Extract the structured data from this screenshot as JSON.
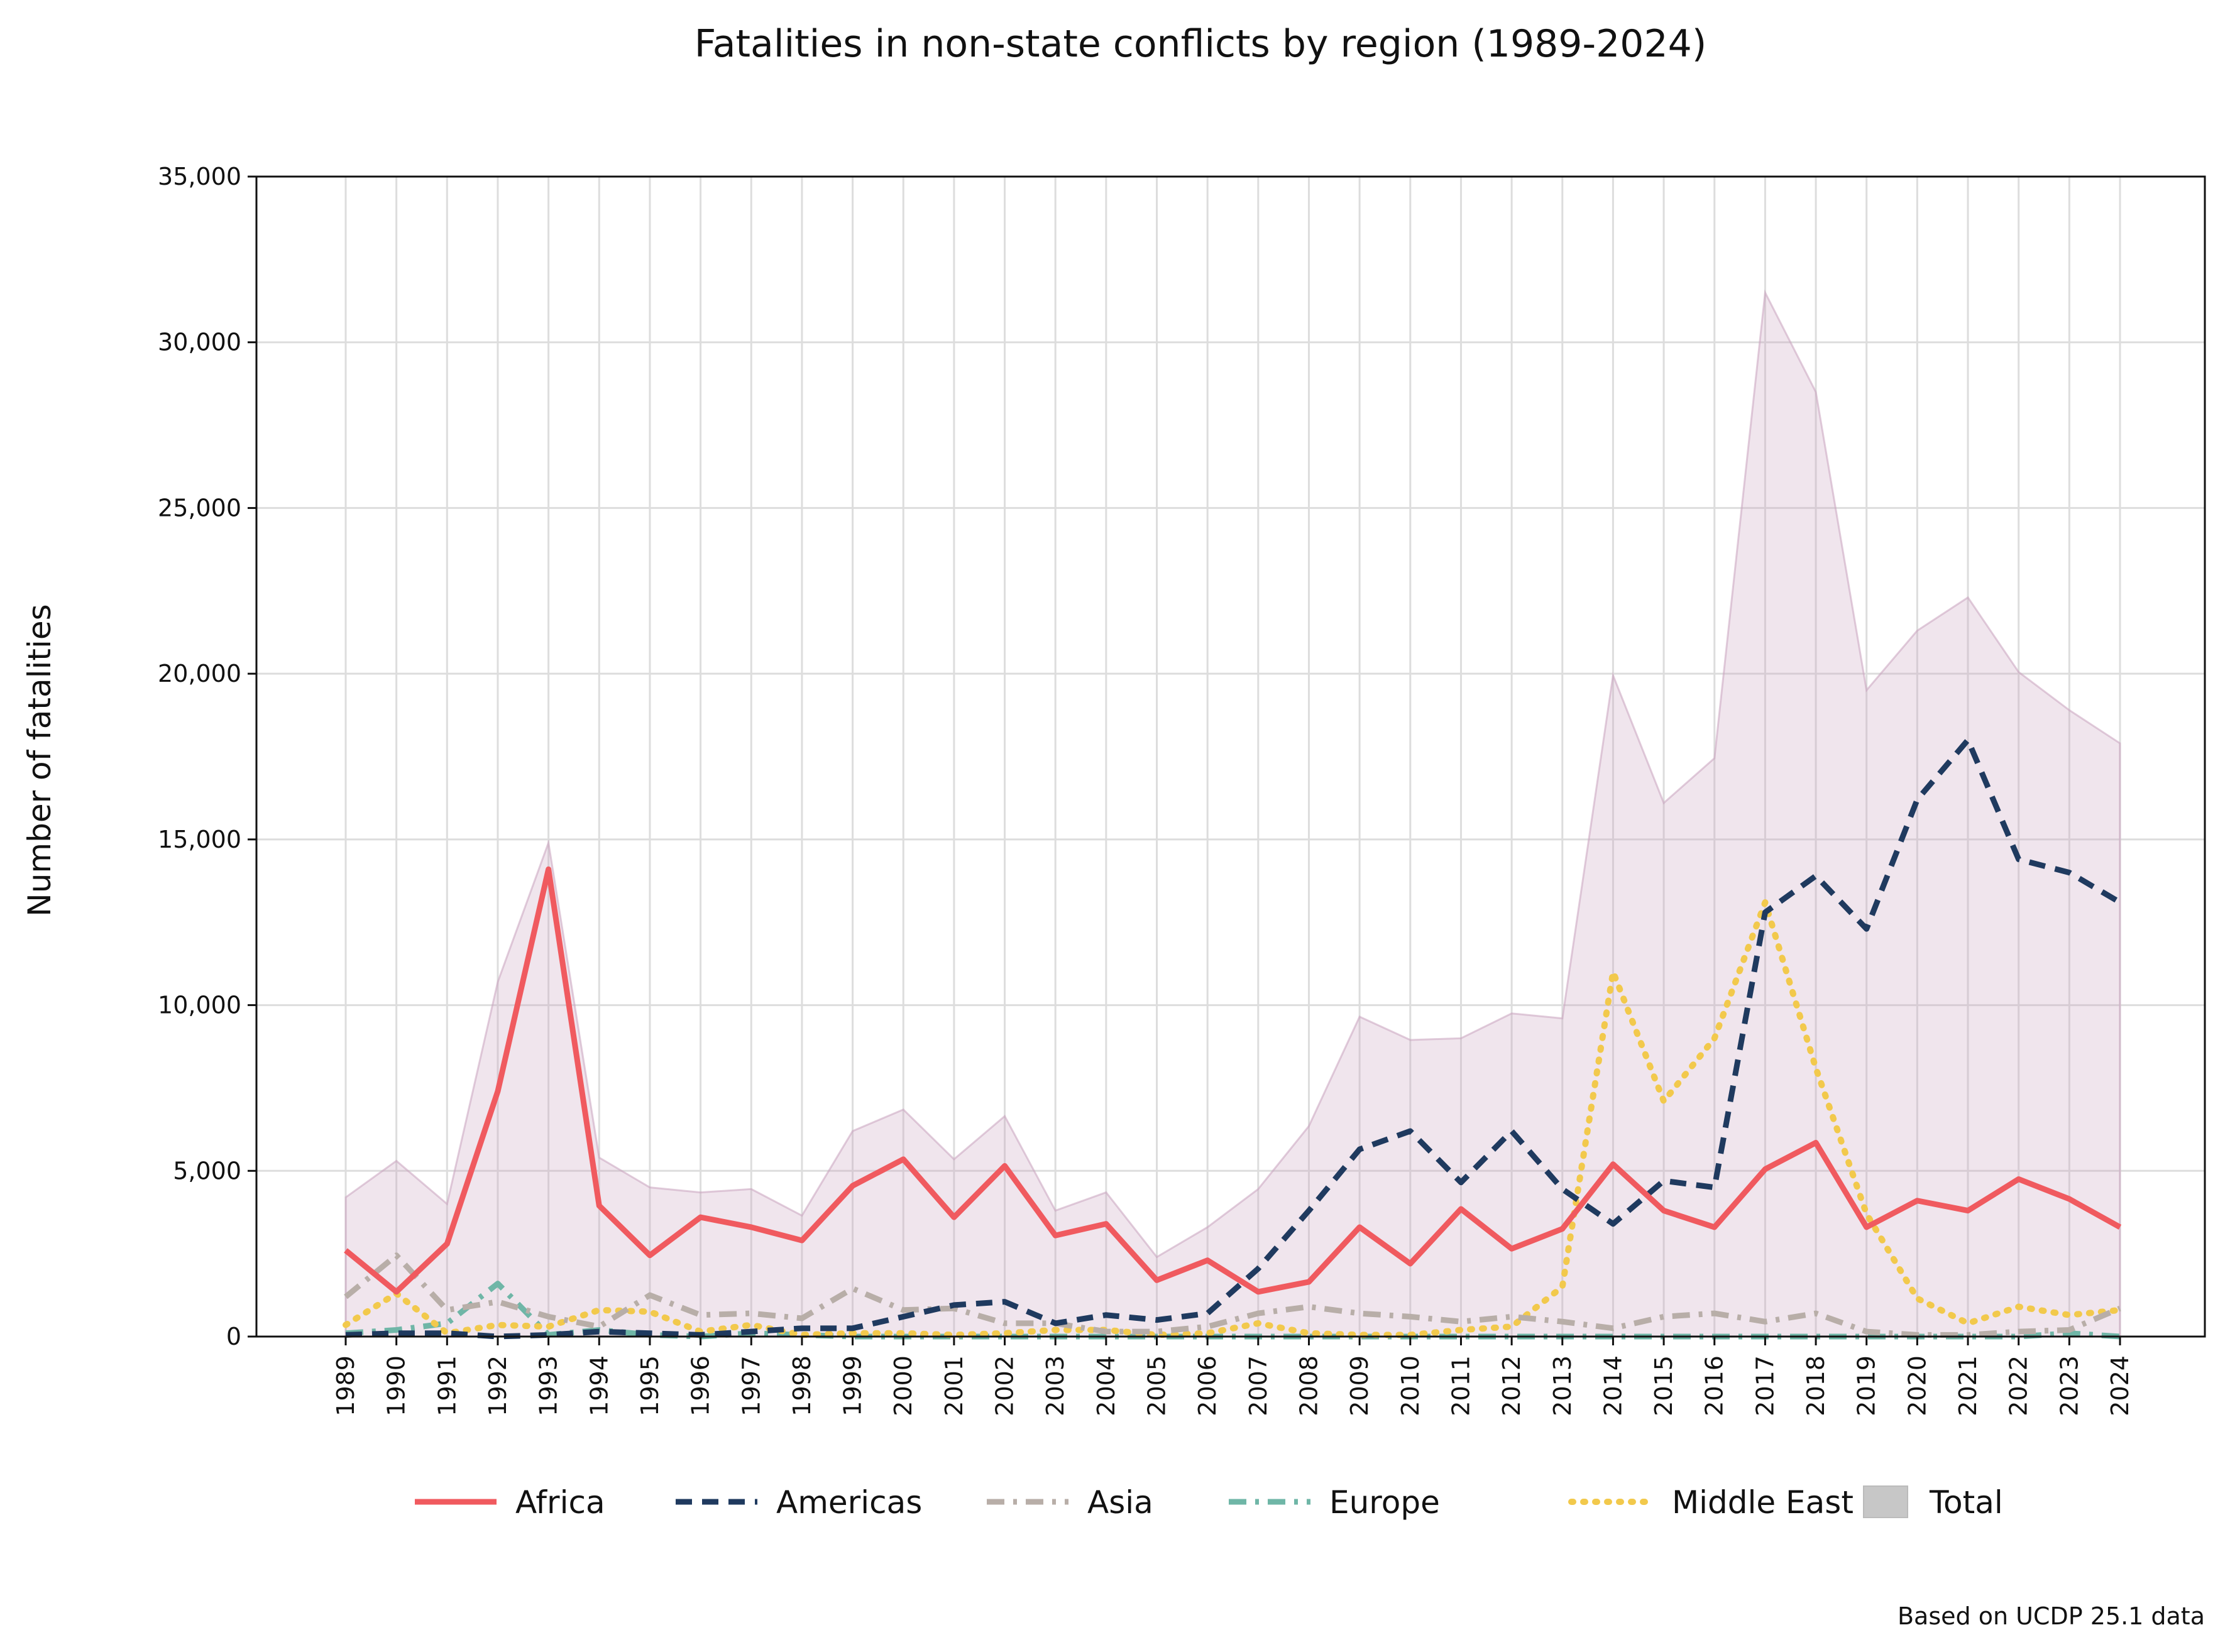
{
  "chart_data": {
    "type": "line",
    "title": "Fatalities in non-state conflicts by region (1989-2024)",
    "ylabel": "Number of fatalities",
    "xlabel": "",
    "source_note": "Based on UCDP 25.1 data",
    "ylim": [
      0,
      35000
    ],
    "yticks": [
      0,
      5000,
      10000,
      15000,
      20000,
      25000,
      30000,
      35000
    ],
    "ytick_labels": [
      "0",
      "5,000",
      "10,000",
      "15,000",
      "20,000",
      "25,000",
      "30,000",
      "35,000"
    ],
    "grid": true,
    "legend_position": "bottom-center",
    "x": [
      "1989",
      "1990",
      "1991",
      "1992",
      "1993",
      "1994",
      "1995",
      "1996",
      "1997",
      "1998",
      "1999",
      "2000",
      "2001",
      "2002",
      "2003",
      "2004",
      "2005",
      "2006",
      "2007",
      "2008",
      "2009",
      "2010",
      "2011",
      "2012",
      "2013",
      "2014",
      "2015",
      "2016",
      "2017",
      "2018",
      "2019",
      "2020",
      "2021",
      "2022",
      "2023",
      "2024"
    ],
    "total": {
      "name": "Total",
      "color": "#c8a2bd",
      "values": [
        4200,
        5300,
        4000,
        10700,
        14900,
        5400,
        4500,
        4350,
        4450,
        3650,
        6200,
        6850,
        5350,
        6650,
        3800,
        4350,
        2400,
        3300,
        4450,
        6350,
        9650,
        8950,
        9000,
        9750,
        9600,
        19950,
        16100,
        17450,
        31500,
        28500,
        19500,
        21300,
        22300,
        20050,
        18900,
        17900
      ]
    },
    "series": [
      {
        "name": "Africa",
        "color": "#f05a5f",
        "dash": "solid",
        "values": [
          2600,
          1350,
          2800,
          7400,
          14100,
          3950,
          2450,
          3600,
          3300,
          2900,
          4550,
          5350,
          3600,
          5150,
          3050,
          3400,
          1700,
          2300,
          1350,
          1650,
          3300,
          2200,
          3850,
          2650,
          3250,
          5200,
          3800,
          3300,
          5050,
          5850,
          3300,
          4100,
          3800,
          4750,
          4150,
          3300
        ]
      },
      {
        "name": "Americas",
        "color": "#1f3a5f",
        "dash": "dashed",
        "values": [
          50,
          100,
          100,
          0,
          50,
          150,
          100,
          50,
          150,
          250,
          250,
          600,
          950,
          1050,
          400,
          650,
          500,
          700,
          2050,
          3800,
          5650,
          6200,
          4650,
          6200,
          4450,
          3400,
          4700,
          4500,
          12800,
          13900,
          12300,
          16200,
          18000,
          14400,
          14000,
          13100
        ]
      },
      {
        "name": "Asia",
        "color": "#b8aea8",
        "dash": "dashdot",
        "values": [
          1200,
          2450,
          800,
          1050,
          600,
          300,
          1250,
          650,
          700,
          550,
          1450,
          800,
          850,
          400,
          400,
          150,
          150,
          300,
          700,
          900,
          700,
          600,
          450,
          600,
          450,
          250,
          600,
          700,
          450,
          700,
          150,
          50,
          50,
          150,
          200,
          850
        ]
      },
      {
        "name": "Europe",
        "color": "#6fb6a7",
        "dash": "dashdot",
        "values": [
          100,
          200,
          400,
          1600,
          50,
          200,
          50,
          0,
          100,
          50,
          0,
          0,
          0,
          0,
          0,
          0,
          0,
          0,
          0,
          0,
          0,
          0,
          0,
          0,
          0,
          0,
          0,
          0,
          0,
          0,
          0,
          0,
          0,
          0,
          100,
          0
        ]
      },
      {
        "name": "Middle East",
        "color": "#f2c94c",
        "dash": "dotted",
        "values": [
          350,
          1300,
          100,
          350,
          300,
          800,
          750,
          150,
          350,
          50,
          100,
          100,
          50,
          100,
          200,
          200,
          50,
          100,
          400,
          100,
          50,
          50,
          200,
          300,
          1500,
          11000,
          7100,
          9000,
          13100,
          8100,
          3700,
          1150,
          400,
          900,
          650,
          800
        ]
      }
    ],
    "legend": [
      {
        "label": "Africa",
        "key": "Africa"
      },
      {
        "label": "Americas",
        "key": "Americas"
      },
      {
        "label": "Asia",
        "key": "Asia"
      },
      {
        "label": "Europe",
        "key": "Europe"
      },
      {
        "label": "Middle East",
        "key": "Middle East"
      },
      {
        "label": "Total",
        "key": "Total"
      }
    ]
  }
}
